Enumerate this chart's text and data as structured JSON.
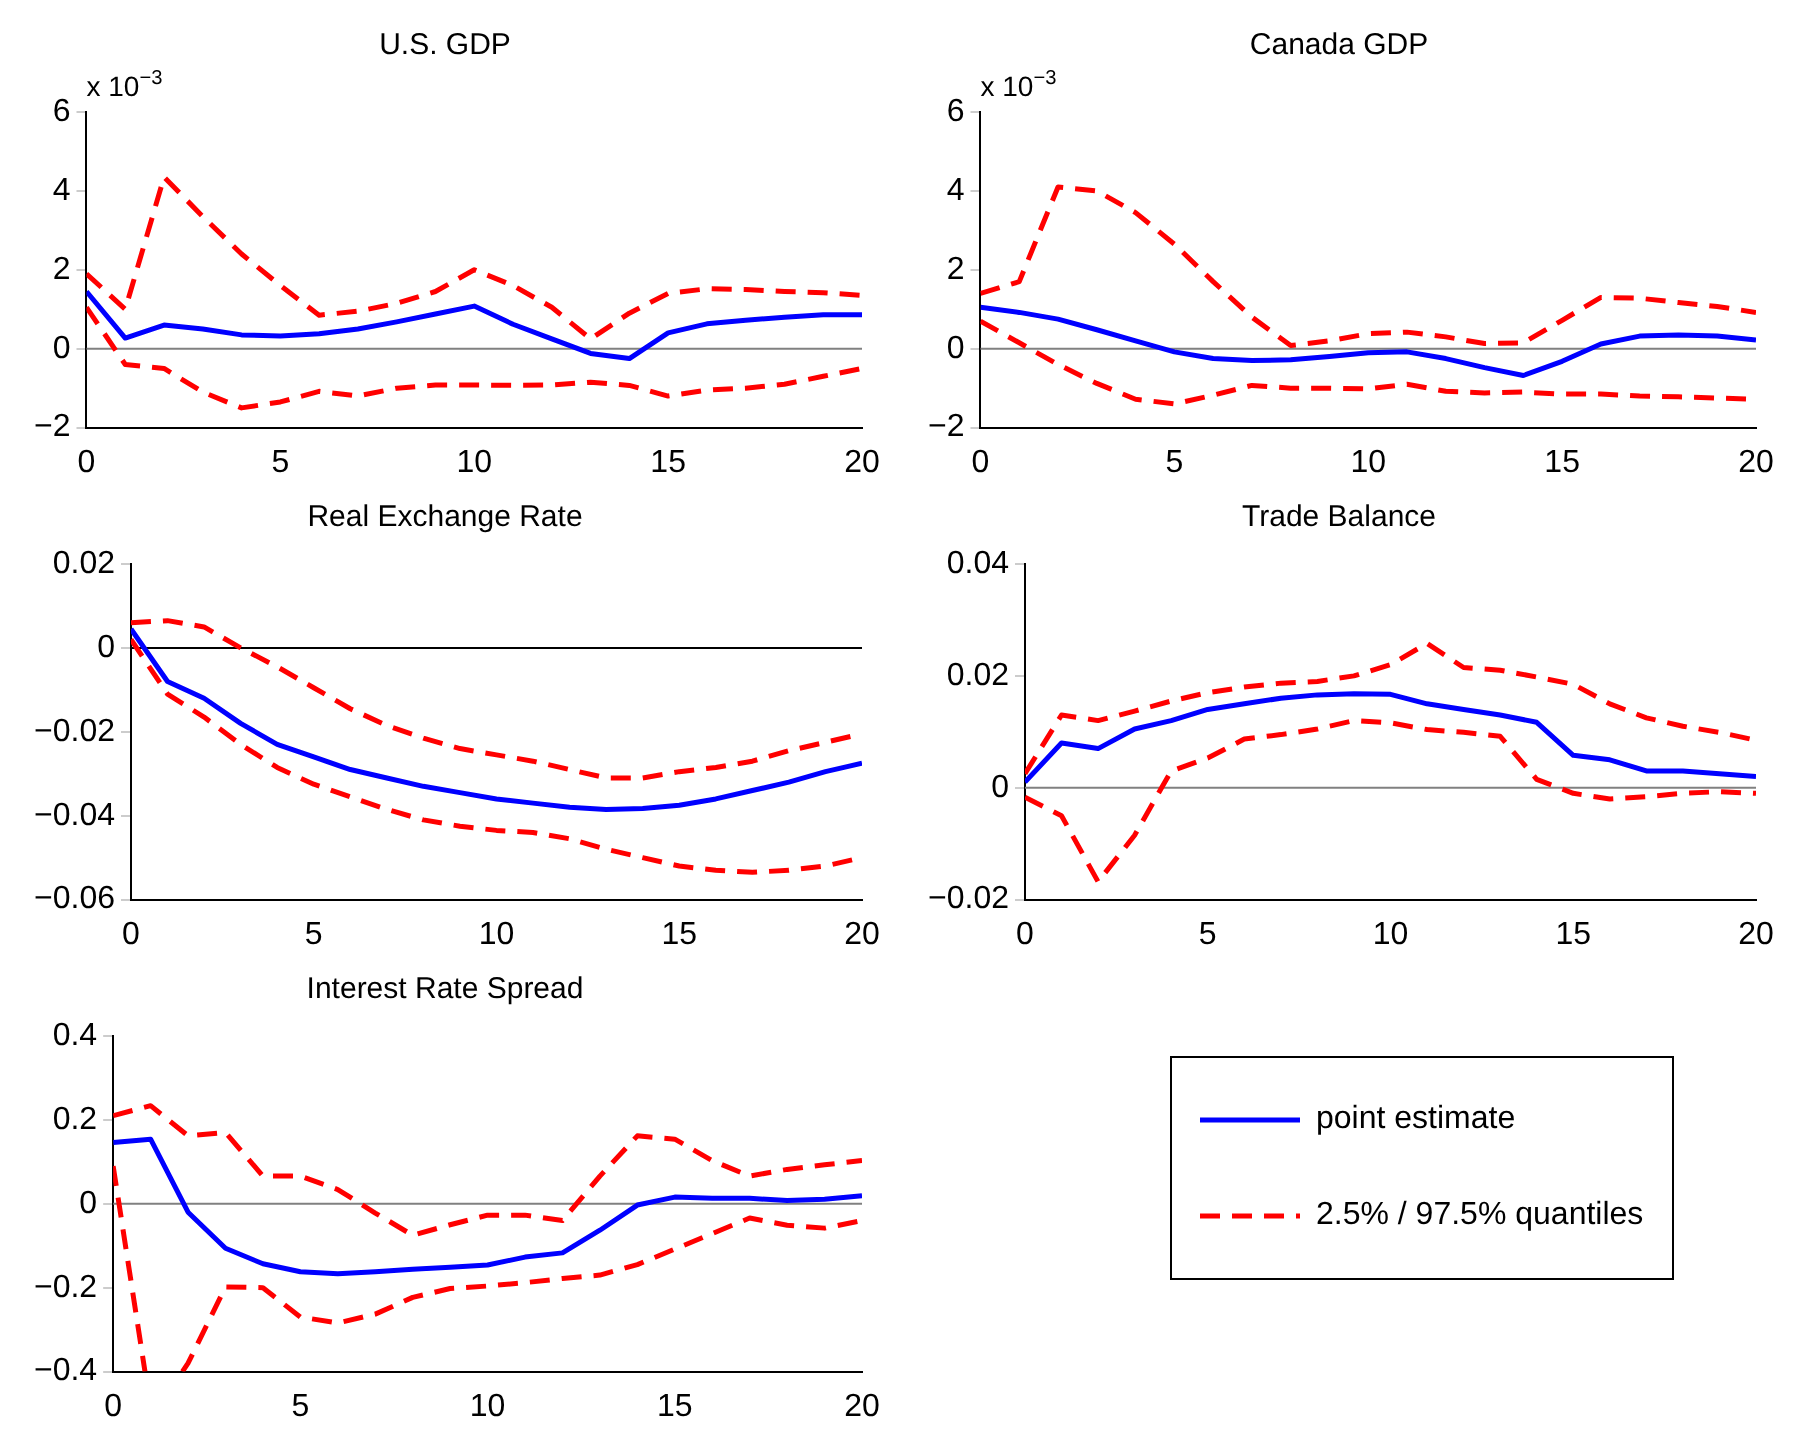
{
  "chart_data": [
    {
      "type": "line",
      "title": "U.S. GDP",
      "ylabel": "x 10$^{−3}$",
      "marker": "none",
      "x": [
        0,
        1,
        2,
        3,
        4,
        5,
        6,
        7,
        8,
        9,
        10,
        11,
        12,
        13,
        14,
        15,
        16,
        17,
        18,
        19,
        20
      ],
      "xlim": [
        0,
        20
      ],
      "xticks": [
        0,
        5,
        10,
        15,
        20
      ],
      "ylim": [
        -2,
        6
      ],
      "yticks": [
        {
          "value": -2,
          "label": "−2"
        },
        0,
        2,
        4,
        6
      ],
      "ref_lines": [
        {
          "axis": "y",
          "value": 0,
          "color": "#808080"
        }
      ],
      "series": [
        {
          "color": "#0000ff",
          "line_style": "solid",
          "values": [
            1.45,
            0.27,
            0.6,
            0.5,
            0.35,
            0.32,
            0.38,
            0.5,
            0.68,
            0.88,
            1.08,
            0.62,
            0.25,
            -0.12,
            -0.25,
            0.4,
            0.63,
            0.72,
            0.8,
            0.86,
            0.86
          ]
        },
        {
          "color": "#ff0000",
          "line_style": "dashed",
          "values": [
            1.9,
            1.0,
            4.35,
            3.35,
            2.4,
            1.6,
            0.85,
            0.95,
            1.15,
            1.45,
            2.0,
            1.6,
            1.05,
            0.25,
            0.9,
            1.4,
            1.52,
            1.5,
            1.45,
            1.42,
            1.35
          ]
        },
        {
          "color": "#ff0000",
          "line_style": "dashed",
          "values": [
            1.05,
            -0.4,
            -0.5,
            -1.1,
            -1.5,
            -1.35,
            -1.08,
            -1.2,
            -1.0,
            -0.92,
            -0.92,
            -0.93,
            -0.92,
            -0.85,
            -0.93,
            -1.2,
            -1.05,
            -1.0,
            -0.9,
            -0.7,
            -0.5
          ]
        }
      ]
    },
    {
      "type": "line",
      "title": "Canada GDP",
      "ylabel": "x 10$^{−3}$",
      "marker": "none",
      "x": [
        0,
        1,
        2,
        3,
        4,
        5,
        6,
        7,
        8,
        9,
        10,
        11,
        12,
        13,
        14,
        15,
        16,
        17,
        18,
        19,
        20
      ],
      "xlim": [
        0,
        20
      ],
      "xticks": [
        0,
        5,
        10,
        15,
        20
      ],
      "ylim": [
        -2,
        6
      ],
      "yticks": [
        {
          "value": -2,
          "label": "−2"
        },
        0,
        2,
        4,
        6
      ],
      "ref_lines": [
        {
          "axis": "y",
          "value": 0,
          "color": "#808080"
        }
      ],
      "series": [
        {
          "color": "#0000ff",
          "line_style": "solid",
          "values": [
            1.05,
            0.92,
            0.75,
            0.48,
            0.2,
            -0.08,
            -0.25,
            -0.3,
            -0.28,
            -0.2,
            -0.1,
            -0.08,
            -0.25,
            -0.48,
            -0.68,
            -0.32,
            0.12,
            0.32,
            0.35,
            0.32,
            0.22
          ]
        },
        {
          "color": "#ff0000",
          "line_style": "dashed",
          "values": [
            1.4,
            1.7,
            4.1,
            4.0,
            3.45,
            2.65,
            1.7,
            0.8,
            0.08,
            0.2,
            0.38,
            0.42,
            0.3,
            0.13,
            0.15,
            0.72,
            1.3,
            1.28,
            1.17,
            1.07,
            0.92
          ]
        },
        {
          "color": "#ff0000",
          "line_style": "dashed",
          "values": [
            0.7,
            0.15,
            -0.4,
            -0.88,
            -1.28,
            -1.4,
            -1.18,
            -0.93,
            -1.0,
            -1.0,
            -1.02,
            -0.9,
            -1.08,
            -1.12,
            -1.1,
            -1.15,
            -1.15,
            -1.2,
            -1.22,
            -1.25,
            -1.28
          ]
        }
      ]
    },
    {
      "type": "line",
      "title": "Real Exchange Rate",
      "marker": "none",
      "x": [
        0,
        1,
        2,
        3,
        4,
        5,
        6,
        7,
        8,
        9,
        10,
        11,
        12,
        13,
        14,
        15,
        16,
        17,
        18,
        19,
        20
      ],
      "xlim": [
        0,
        20
      ],
      "xticks": [
        0,
        5,
        10,
        15,
        20
      ],
      "ylim": [
        -0.06,
        0.02
      ],
      "yticks": [
        {
          "value": -0.06,
          "label": "−0.06"
        },
        {
          "value": -0.04,
          "label": "−0.04"
        },
        {
          "value": -0.02,
          "label": "−0.02"
        },
        0,
        0.02
      ],
      "ref_lines": [
        {
          "axis": "y",
          "value": 0,
          "color": "#000000"
        }
      ],
      "series": [
        {
          "color": "#0000ff",
          "line_style": "solid",
          "values": [
            0.0045,
            -0.008,
            -0.012,
            -0.018,
            -0.023,
            -0.026,
            -0.029,
            -0.031,
            -0.033,
            -0.0345,
            -0.036,
            -0.037,
            -0.038,
            -0.0385,
            -0.0383,
            -0.0375,
            -0.036,
            -0.034,
            -0.032,
            -0.0295,
            -0.0275
          ]
        },
        {
          "color": "#ff0000",
          "line_style": "dashed",
          "values": [
            0.006,
            0.0065,
            0.005,
            0.0,
            -0.0045,
            -0.0095,
            -0.0145,
            -0.0185,
            -0.0215,
            -0.024,
            -0.0255,
            -0.027,
            -0.029,
            -0.031,
            -0.031,
            -0.0295,
            -0.0285,
            -0.027,
            -0.0245,
            -0.0225,
            -0.0205
          ]
        },
        {
          "color": "#ff0000",
          "line_style": "dashed",
          "values": [
            0.002,
            -0.011,
            -0.0165,
            -0.023,
            -0.0285,
            -0.0325,
            -0.0355,
            -0.0385,
            -0.041,
            -0.0425,
            -0.0435,
            -0.044,
            -0.0455,
            -0.048,
            -0.05,
            -0.052,
            -0.053,
            -0.0535,
            -0.053,
            -0.052,
            -0.05
          ]
        }
      ]
    },
    {
      "type": "line",
      "title": "Trade Balance",
      "marker": "none",
      "x": [
        0,
        1,
        2,
        3,
        4,
        5,
        6,
        7,
        8,
        9,
        10,
        11,
        12,
        13,
        14,
        15,
        16,
        17,
        18,
        19,
        20
      ],
      "xlim": [
        0,
        20
      ],
      "xticks": [
        0,
        5,
        10,
        15,
        20
      ],
      "ylim": [
        -0.02,
        0.04
      ],
      "yticks": [
        {
          "value": -0.02,
          "label": "−0.02"
        },
        0,
        0.02,
        0.04
      ],
      "ref_lines": [
        {
          "axis": "y",
          "value": 0,
          "color": "#808080"
        }
      ],
      "series": [
        {
          "color": "#0000ff",
          "line_style": "solid",
          "values": [
            0.001,
            0.008,
            0.007,
            0.0105,
            0.012,
            0.014,
            0.015,
            0.016,
            0.0166,
            0.0168,
            0.0167,
            0.015,
            0.014,
            0.013,
            0.0117,
            0.0058,
            0.005,
            0.003,
            0.003,
            0.0025,
            0.002
          ]
        },
        {
          "color": "#ff0000",
          "line_style": "dashed",
          "values": [
            0.0025,
            0.013,
            0.012,
            0.0137,
            0.0155,
            0.017,
            0.018,
            0.0187,
            0.019,
            0.02,
            0.022,
            0.0258,
            0.0215,
            0.021,
            0.0198,
            0.0185,
            0.015,
            0.0125,
            0.011,
            0.0099,
            0.0085
          ]
        },
        {
          "color": "#ff0000",
          "line_style": "dashed",
          "values": [
            -0.0017,
            -0.005,
            -0.0168,
            -0.0085,
            0.003,
            0.0053,
            0.0087,
            0.0095,
            0.0105,
            0.012,
            0.0116,
            0.0104,
            0.0099,
            0.0092,
            0.0015,
            -0.001,
            -0.002,
            -0.0016,
            -0.001,
            -0.0007,
            -0.001
          ]
        }
      ]
    },
    {
      "type": "line",
      "title": "Interest Rate Spread",
      "marker": "none",
      "legend": "right",
      "x": [
        0,
        1,
        2,
        3,
        4,
        5,
        6,
        7,
        8,
        9,
        10,
        11,
        12,
        13,
        14,
        15,
        16,
        17,
        18,
        19,
        20
      ],
      "xlim": [
        0,
        20
      ],
      "xticks": [
        0,
        5,
        10,
        15,
        20
      ],
      "ylim": [
        -0.4,
        0.4
      ],
      "yticks": [
        {
          "value": -0.4,
          "label": "−0.4"
        },
        {
          "value": -0.2,
          "label": "−0.2"
        },
        0,
        0.2,
        0.4
      ],
      "ref_lines": [
        {
          "axis": "y",
          "value": 0,
          "color": "#808080"
        }
      ],
      "series": [
        {
          "name": "point estimate",
          "color": "#0000ff",
          "line_style": "solid",
          "values": [
            0.146,
            0.154,
            -0.02,
            -0.106,
            -0.143,
            -0.162,
            -0.167,
            -0.162,
            -0.156,
            -0.151,
            -0.146,
            -0.127,
            -0.117,
            -0.063,
            -0.003,
            0.016,
            0.013,
            0.013,
            0.008,
            0.011,
            0.019
          ]
        },
        {
          "name": "2.5% / 97.5% quantiles",
          "color": "#ff0000",
          "line_style": "dashed",
          "values": [
            0.21,
            0.234,
            0.162,
            0.17,
            0.066,
            0.066,
            0.034,
            -0.022,
            -0.075,
            -0.05,
            -0.027,
            -0.027,
            -0.04,
            0.066,
            0.162,
            0.154,
            0.103,
            0.066,
            0.082,
            0.093,
            0.103
          ]
        },
        {
          "color": "#ff0000",
          "line_style": "dashed",
          "x": [
            0,
            0.85,
            1.4,
            1.85,
            2,
            3,
            4,
            5,
            6,
            7,
            8,
            9,
            10,
            11,
            12,
            13,
            14,
            15,
            16,
            17,
            18,
            19,
            20
          ],
          "values": [
            0.09,
            -0.4,
            null,
            -0.4,
            -0.38,
            -0.198,
            -0.2,
            -0.27,
            -0.284,
            -0.263,
            -0.223,
            -0.202,
            -0.196,
            -0.188,
            -0.178,
            -0.17,
            -0.145,
            -0.108,
            -0.071,
            -0.034,
            -0.051,
            -0.058,
            -0.04
          ]
        }
      ]
    }
  ]
}
